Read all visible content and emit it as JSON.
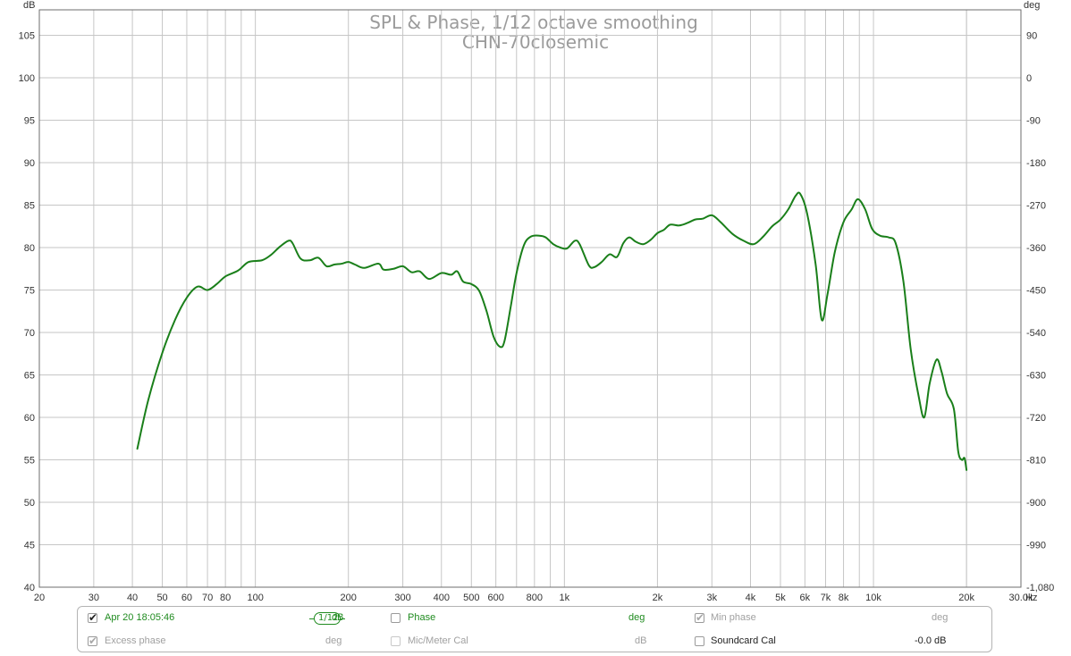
{
  "chart_data": {
    "type": "line",
    "title": "SPL & Phase, 1/12 octave smoothing",
    "subtitle": "CHN-70closemic",
    "ylabel_left": "dB",
    "ylabel_right": "deg",
    "xunit": "Hz",
    "xscale": "log",
    "xlim": [
      20,
      30000
    ],
    "ylim": [
      40,
      108
    ],
    "ylim_right": [
      -1080,
      135
    ],
    "grid": true,
    "x_ticks": [
      {
        "v": 20,
        "label": "20"
      },
      {
        "v": 30,
        "label": "30"
      },
      {
        "v": 40,
        "label": "40"
      },
      {
        "v": 50,
        "label": "50"
      },
      {
        "v": 60,
        "label": "60"
      },
      {
        "v": 70,
        "label": "70"
      },
      {
        "v": 80,
        "label": "80"
      },
      {
        "v": 100,
        "label": "100"
      },
      {
        "v": 200,
        "label": "200"
      },
      {
        "v": 300,
        "label": "300"
      },
      {
        "v": 400,
        "label": "400"
      },
      {
        "v": 500,
        "label": "500"
      },
      {
        "v": 600,
        "label": "600"
      },
      {
        "v": 800,
        "label": "800"
      },
      {
        "v": 1000,
        "label": "1k"
      },
      {
        "v": 2000,
        "label": "2k"
      },
      {
        "v": 3000,
        "label": "3k"
      },
      {
        "v": 4000,
        "label": "4k"
      },
      {
        "v": 5000,
        "label": "5k"
      },
      {
        "v": 6000,
        "label": "6k"
      },
      {
        "v": 7000,
        "label": "7k"
      },
      {
        "v": 8000,
        "label": "8k"
      },
      {
        "v": 10000,
        "label": "10k"
      },
      {
        "v": 20000,
        "label": "20k"
      },
      {
        "v": 30000,
        "label": "30.0k"
      }
    ],
    "y_ticks_left": [
      40,
      45,
      50,
      55,
      60,
      65,
      70,
      75,
      80,
      85,
      90,
      95,
      100,
      105
    ],
    "y_ticks_right": [
      {
        "dB": 105,
        "label": "90"
      },
      {
        "dB": 100,
        "label": "0"
      },
      {
        "dB": 95,
        "label": "-90"
      },
      {
        "dB": 90,
        "label": "-180"
      },
      {
        "dB": 85,
        "label": "-270"
      },
      {
        "dB": 80,
        "label": "-360"
      },
      {
        "dB": 75,
        "label": "-450"
      },
      {
        "dB": 70,
        "label": "-540"
      },
      {
        "dB": 65,
        "label": "-630"
      },
      {
        "dB": 60,
        "label": "-720"
      },
      {
        "dB": 55,
        "label": "-810"
      },
      {
        "dB": 50,
        "label": "-900"
      },
      {
        "dB": 45,
        "label": "-990"
      },
      {
        "dB": 40,
        "label": "-1,080"
      }
    ],
    "series": [
      {
        "name": "Apr 20 18:05:46",
        "color": "#1a7f1a",
        "points": [
          [
            41.5,
            56.3
          ],
          [
            45,
            62.0
          ],
          [
            50,
            67.6
          ],
          [
            55,
            71.5
          ],
          [
            60,
            74.1
          ],
          [
            65,
            75.4
          ],
          [
            70,
            75.0
          ],
          [
            75,
            75.7
          ],
          [
            80,
            76.6
          ],
          [
            88,
            77.3
          ],
          [
            95,
            78.3
          ],
          [
            105,
            78.5
          ],
          [
            112,
            79.1
          ],
          [
            120,
            80.1
          ],
          [
            128,
            80.8
          ],
          [
            132,
            80.5
          ],
          [
            140,
            78.7
          ],
          [
            150,
            78.5
          ],
          [
            160,
            78.8
          ],
          [
            170,
            77.8
          ],
          [
            180,
            78.0
          ],
          [
            190,
            78.1
          ],
          [
            200,
            78.3
          ],
          [
            210,
            78.0
          ],
          [
            225,
            77.6
          ],
          [
            250,
            78.1
          ],
          [
            260,
            77.4
          ],
          [
            280,
            77.5
          ],
          [
            300,
            77.8
          ],
          [
            320,
            77.1
          ],
          [
            340,
            77.2
          ],
          [
            365,
            76.3
          ],
          [
            400,
            77.0
          ],
          [
            430,
            76.8
          ],
          [
            450,
            77.2
          ],
          [
            470,
            76.0
          ],
          [
            500,
            75.7
          ],
          [
            530,
            74.9
          ],
          [
            560,
            72.5
          ],
          [
            590,
            69.5
          ],
          [
            620,
            68.3
          ],
          [
            640,
            69.0
          ],
          [
            670,
            73.0
          ],
          [
            700,
            77.0
          ],
          [
            740,
            80.3
          ],
          [
            780,
            81.3
          ],
          [
            830,
            81.4
          ],
          [
            870,
            81.2
          ],
          [
            920,
            80.4
          ],
          [
            970,
            80.0
          ],
          [
            1020,
            79.9
          ],
          [
            1080,
            80.8
          ],
          [
            1120,
            80.4
          ],
          [
            1200,
            77.9
          ],
          [
            1250,
            77.7
          ],
          [
            1320,
            78.3
          ],
          [
            1400,
            79.2
          ],
          [
            1480,
            78.9
          ],
          [
            1550,
            80.5
          ],
          [
            1620,
            81.2
          ],
          [
            1700,
            80.7
          ],
          [
            1800,
            80.4
          ],
          [
            1900,
            80.9
          ],
          [
            2000,
            81.7
          ],
          [
            2100,
            82.1
          ],
          [
            2200,
            82.7
          ],
          [
            2350,
            82.6
          ],
          [
            2500,
            82.9
          ],
          [
            2650,
            83.3
          ],
          [
            2800,
            83.4
          ],
          [
            3000,
            83.8
          ],
          [
            3200,
            83.0
          ],
          [
            3500,
            81.6
          ],
          [
            3800,
            80.8
          ],
          [
            4100,
            80.4
          ],
          [
            4400,
            81.3
          ],
          [
            4700,
            82.5
          ],
          [
            5000,
            83.3
          ],
          [
            5300,
            84.5
          ],
          [
            5600,
            86.1
          ],
          [
            5800,
            86.3
          ],
          [
            6100,
            84.0
          ],
          [
            6500,
            78.0
          ],
          [
            6800,
            71.5
          ],
          [
            7100,
            74.5
          ],
          [
            7500,
            79.5
          ],
          [
            8000,
            83.0
          ],
          [
            8500,
            84.5
          ],
          [
            8900,
            85.7
          ],
          [
            9400,
            84.5
          ],
          [
            9900,
            82.2
          ],
          [
            10500,
            81.4
          ],
          [
            11200,
            81.2
          ],
          [
            11800,
            80.5
          ],
          [
            12500,
            76.0
          ],
          [
            13200,
            68.0
          ],
          [
            14000,
            62.5
          ],
          [
            14600,
            60.0
          ],
          [
            15200,
            64.0
          ],
          [
            16000,
            66.8
          ],
          [
            16600,
            65.4
          ],
          [
            17300,
            62.8
          ],
          [
            18200,
            61.0
          ],
          [
            18800,
            56.0
          ],
          [
            19300,
            55.0
          ],
          [
            19700,
            55.2
          ],
          [
            20000,
            53.8
          ]
        ]
      }
    ]
  },
  "controls": {
    "trace_label": "Apr 20 18:05:46",
    "smoothing_num": "1",
    "smoothing_den": "12",
    "trace_unit": "dB",
    "phase_label": "Phase",
    "phase_unit": "deg",
    "min_phase_label": "Min phase",
    "min_phase_unit": "deg",
    "excess_phase_label": "Excess phase",
    "excess_phase_unit": "deg",
    "mic_cal_label": "Mic/Meter Cal",
    "mic_cal_unit": "dB",
    "soundcard_cal_label": "Soundcard Cal",
    "soundcard_cal_value": "-0.0 dB"
  }
}
